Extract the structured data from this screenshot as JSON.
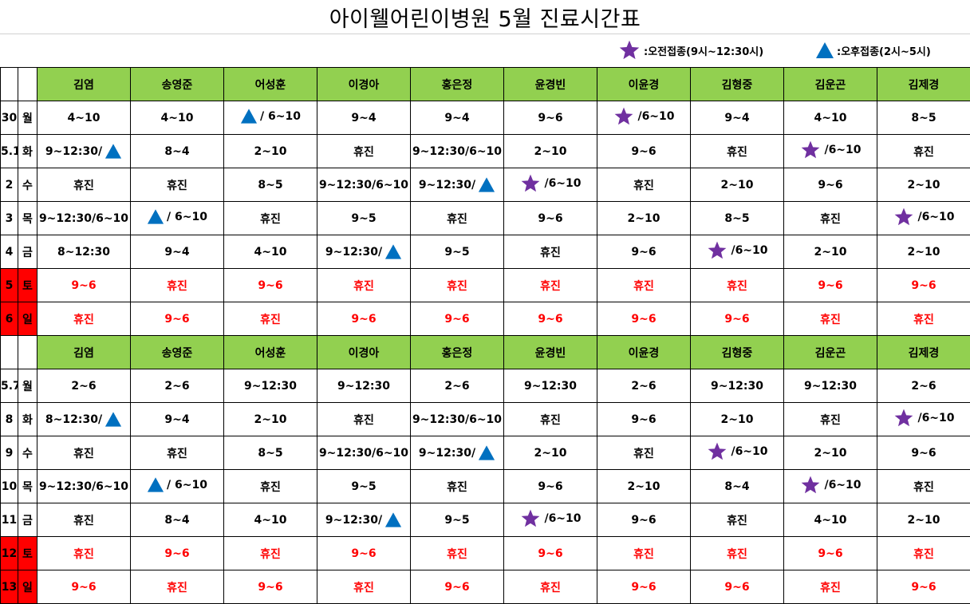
{
  "title": "아이웰어린이병원  5월 진료시간표",
  "legend": {
    "morning": ":오전접종(9시~12:30시)",
    "afternoon": ":오후접종(2시~5시)",
    "star_color": "#7030a0",
    "triangle_color": "#0070c0"
  },
  "colors": {
    "header_bg": "#92d050",
    "weekend_bg": "#ff0000",
    "weekend_text": "#ff0000"
  },
  "doctors": [
    "김염",
    "송영준",
    "어성훈",
    "이경아",
    "홍은정",
    "윤경빈",
    "이윤경",
    "김형중",
    "김운곤",
    "김제경"
  ],
  "weeks": [
    {
      "rows": [
        {
          "date": "30",
          "dow": "월",
          "weekend": false,
          "cells": [
            "4~10",
            "4~10",
            "[T] / 6~10",
            "9~4",
            "9~4",
            "9~6",
            "[S] /6~10",
            "9~4",
            "4~10",
            "8~5"
          ]
        },
        {
          "date": "5.1",
          "dow": "화",
          "weekend": false,
          "cells": [
            "9~12:30/[T]",
            "8~4",
            "2~10",
            "휴진",
            "9~12:30/6~10",
            "2~10",
            "9~6",
            "휴진",
            "[S]/6~10",
            "휴진"
          ]
        },
        {
          "date": "2",
          "dow": "수",
          "weekend": false,
          "cells": [
            "휴진",
            "휴진",
            "8~5",
            "9~12:30/6~10",
            "9~12:30/[T]",
            "[S]/6~10",
            "휴진",
            "2~10",
            "9~6",
            "2~10"
          ]
        },
        {
          "date": "3",
          "dow": "목",
          "weekend": false,
          "cells": [
            "9~12:30/6~10",
            "[T] / 6~10",
            "휴진",
            "9~5",
            "휴진",
            "9~6",
            "2~10",
            "8~5",
            "휴진",
            "[S]/6~10"
          ]
        },
        {
          "date": "4",
          "dow": "금",
          "weekend": false,
          "cells": [
            "8~12:30",
            "9~4",
            "4~10",
            "9~12:30/[T]",
            "9~5",
            "휴진",
            "9~6",
            "[S]/6~10",
            "2~10",
            "2~10"
          ]
        },
        {
          "date": "5",
          "dow": "토",
          "weekend": true,
          "cells": [
            "9~6",
            "휴진",
            "9~6",
            "휴진",
            "휴진",
            "휴진",
            "휴진",
            "휴진",
            "9~6",
            "9~6"
          ]
        },
        {
          "date": "6",
          "dow": "일",
          "weekend": true,
          "cells": [
            "휴진",
            "9~6",
            "휴진",
            "9~6",
            "9~6",
            "9~6",
            "9~6",
            "9~6",
            "휴진",
            "휴진"
          ]
        }
      ]
    },
    {
      "rows": [
        {
          "date": "5.7",
          "dow": "월",
          "weekend": false,
          "cells": [
            "2~6",
            "2~6",
            "9~12:30",
            "9~12:30",
            "2~6",
            "9~12:30",
            "2~6",
            "9~12:30",
            "9~12:30",
            "2~6"
          ]
        },
        {
          "date": "8",
          "dow": "화",
          "weekend": false,
          "cells": [
            "8~12:30/[T]",
            "9~4",
            "2~10",
            "휴진",
            "9~12:30/6~10",
            "휴진",
            "9~6",
            "2~10",
            "휴진",
            "[S]/6~10"
          ]
        },
        {
          "date": "9",
          "dow": "수",
          "weekend": false,
          "cells": [
            "휴진",
            "휴진",
            "8~5",
            "9~12:30/6~10",
            "9~12:30/[T]",
            "2~10",
            "휴진",
            "[S]/6~10",
            "2~10",
            "9~6"
          ]
        },
        {
          "date": "10",
          "dow": "목",
          "weekend": false,
          "cells": [
            "9~12:30/6~10",
            "[T] / 6~10",
            "휴진",
            "9~5",
            "휴진",
            "9~6",
            "2~10",
            "8~4",
            "[S]/6~10",
            "휴진"
          ]
        },
        {
          "date": "11",
          "dow": "금",
          "weekend": false,
          "cells": [
            "휴진",
            "8~4",
            "4~10",
            "9~12:30/[T]",
            "9~5",
            "[S]/6~10",
            "9~6",
            "휴진",
            "4~10",
            "2~10"
          ]
        },
        {
          "date": "12",
          "dow": "토",
          "weekend": true,
          "cells": [
            "휴진",
            "9~6",
            "휴진",
            "9~6",
            "휴진",
            "9~6",
            "휴진",
            "휴진",
            "9~6",
            "휴진"
          ]
        },
        {
          "date": "13",
          "dow": "일",
          "weekend": true,
          "cells": [
            "9~6",
            "휴진",
            "9~6",
            "휴진",
            "9~6",
            "휴진",
            "9~6",
            "9~6",
            "휴진",
            "9~6"
          ]
        }
      ]
    }
  ]
}
